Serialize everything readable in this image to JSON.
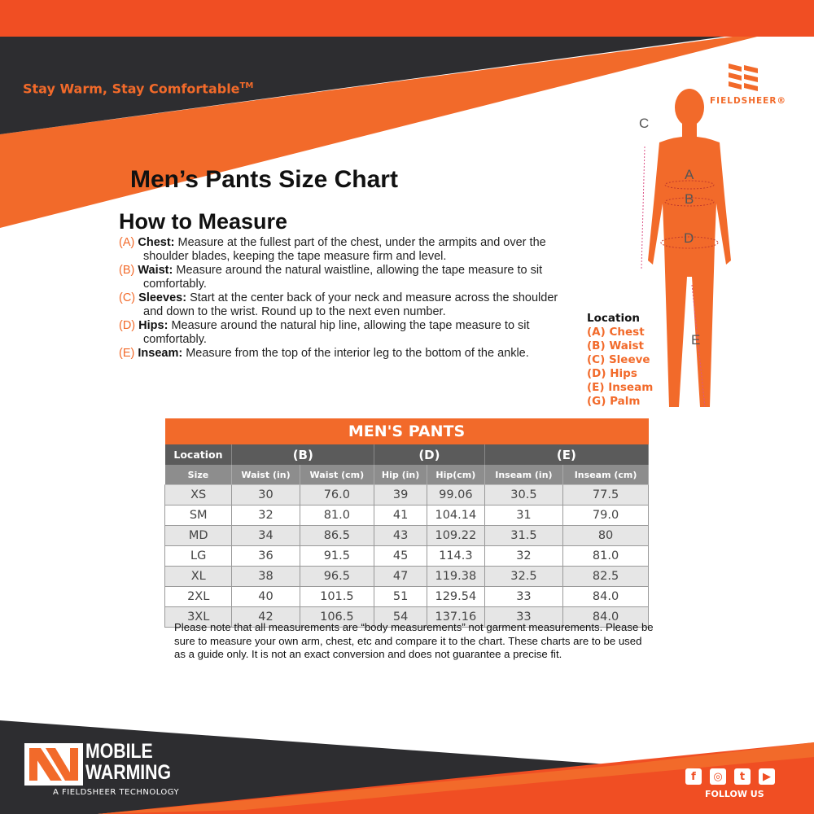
{
  "header": {
    "tagline": "Stay Warm, Stay Comfortable",
    "tm": "TM",
    "brand": "FIELDSHEER®"
  },
  "colors": {
    "orange": "#f26a2a",
    "red_orange": "#f04e23",
    "dark": "#2d2d30",
    "table_header": "#5b5b5b",
    "table_subheader": "#8d8d8d"
  },
  "title": "Men’s Pants Size Chart",
  "how_to": {
    "heading": "How to Measure",
    "steps": [
      {
        "code": "(A)",
        "label": "Chest:",
        "text": "Measure at the fullest part of the chest, under the armpits and over the shoulder blades, keeping the tape measure firm and level."
      },
      {
        "code": "(B)",
        "label": "Waist:",
        "text": "Measure around the natural waistline, allowing the tape measure to sit comfortably."
      },
      {
        "code": "(C)",
        "label": "Sleeves:",
        "text": "Start at the center back of your neck and measure across the shoulder and down to the wrist. Round up to the next even number."
      },
      {
        "code": "(D)",
        "label": "Hips:",
        "text": "Measure around the natural hip line, allowing the tape measure to sit comfortably."
      },
      {
        "code": "(E)",
        "label": "Inseam:",
        "text": "Measure from the top of the interior leg to the bottom of the ankle."
      }
    ]
  },
  "figure": {
    "labels": [
      "C",
      "A",
      "B",
      "D",
      "E"
    ]
  },
  "legend": {
    "heading": "Location",
    "items": [
      "(A) Chest",
      "(B) Waist",
      "(C) Sleeve",
      "(D) Hips",
      "(E) Inseam",
      "(G) Palm"
    ]
  },
  "table": {
    "title": "MEN'S PANTS",
    "groups": [
      "Location",
      "(B)",
      "(D)",
      "(E)"
    ],
    "columns": [
      "Size",
      "Waist (in)",
      "Waist (cm)",
      "Hip (in)",
      "Hip(cm)",
      "Inseam (in)",
      "Inseam (cm)"
    ],
    "rows": [
      [
        "XS",
        "30",
        "76.0",
        "39",
        "99.06",
        "30.5",
        "77.5"
      ],
      [
        "SM",
        "32",
        "81.0",
        "41",
        "104.14",
        "31",
        "79.0"
      ],
      [
        "MD",
        "34",
        "86.5",
        "43",
        "109.22",
        "31.5",
        "80"
      ],
      [
        "LG",
        "36",
        "91.5",
        "45",
        "114.3",
        "32",
        "81.0"
      ],
      [
        "XL",
        "38",
        "96.5",
        "47",
        "119.38",
        "32.5",
        "82.5"
      ],
      [
        "2XL",
        "40",
        "101.5",
        "51",
        "129.54",
        "33",
        "84.0"
      ],
      [
        "3XL",
        "42",
        "106.5",
        "54",
        "137.16",
        "33",
        "84.0"
      ]
    ]
  },
  "note": "Please note that all measurements are “body measurements” not garment measurements. Please be sure to measure your own arm, chest, etc and compare it to the chart. These charts are to be used as a guide only. It is not an exact conversion and does not guarantee a precise fit.",
  "footer": {
    "logo_line1": "MOBILE",
    "logo_line2": "WARMING",
    "logo_sub": "A FIELDSHEER TECHNOLOGY",
    "social": [
      {
        "icon": "facebook-icon",
        "glyph": "f"
      },
      {
        "icon": "instagram-icon",
        "glyph": "◎"
      },
      {
        "icon": "twitter-icon",
        "glyph": "t"
      },
      {
        "icon": "youtube-icon",
        "glyph": "▶"
      }
    ],
    "follow": "FOLLOW US"
  }
}
